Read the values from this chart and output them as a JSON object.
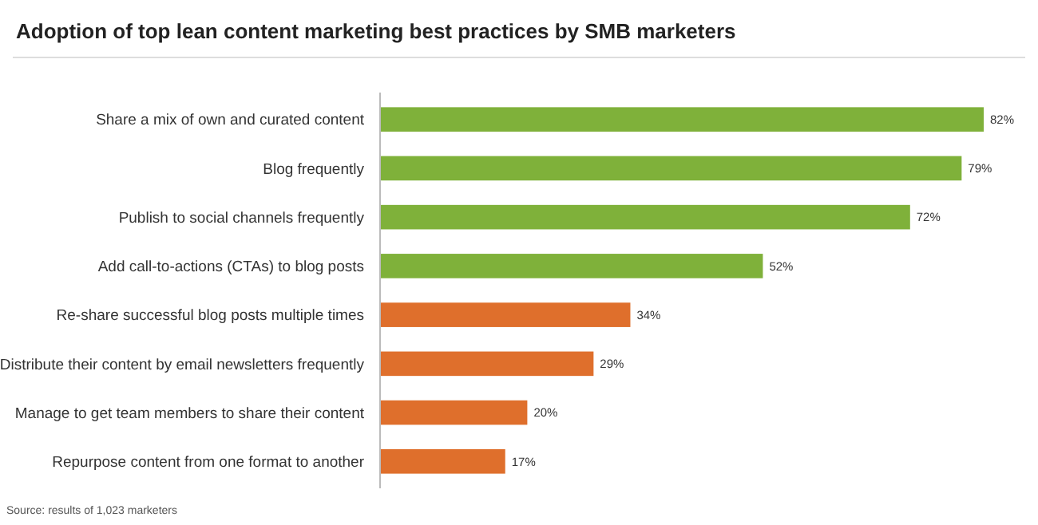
{
  "chart_data": {
    "type": "bar",
    "orientation": "horizontal",
    "title": "Adoption of top lean content marketing best practices by SMB marketers",
    "categories": [
      "Share a mix of own and curated content",
      "Blog frequently",
      "Publish to social channels frequently",
      "Add call-to-actions (CTAs) to blog posts",
      "Re-share successful blog posts multiple times",
      "Distribute their content by email newsletters frequently",
      "Manage to get team members to share their content",
      "Repurpose content from one format to another"
    ],
    "values": [
      82,
      79,
      72,
      52,
      34,
      29,
      20,
      17
    ],
    "value_labels": [
      "82%",
      "79%",
      "72%",
      "52%",
      "34%",
      "29%",
      "20%",
      "17%"
    ],
    "colors": [
      "#7fb13a",
      "#7fb13a",
      "#7fb13a",
      "#7fb13a",
      "#df6f2c",
      "#df6f2c",
      "#df6f2c",
      "#df6f2c"
    ],
    "annotations": [
      "Source: results of 1,023 marketers"
    ]
  }
}
